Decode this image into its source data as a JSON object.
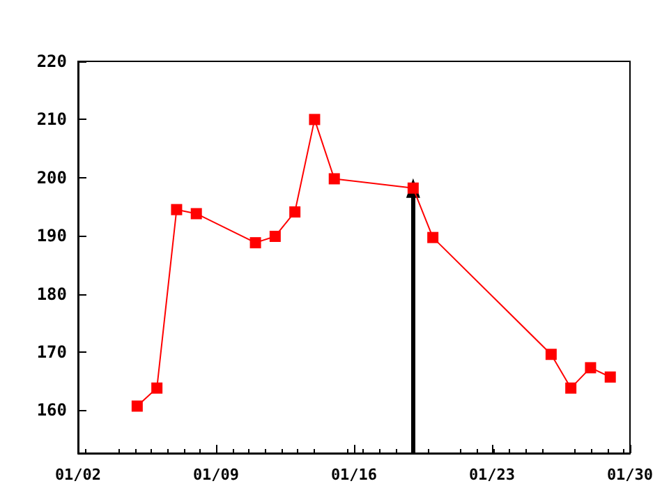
{
  "chart_data": {
    "type": "line",
    "x": [
      "--01-05",
      "--01-06",
      "--01-07",
      "--01-08",
      "--01-11",
      "--01-12",
      "--01-13",
      "--01-14",
      "--01-15",
      "--01-19",
      "--01-20",
      "--01-26",
      "--01-27",
      "--01-28",
      "--01-29"
    ],
    "series": [
      {
        "color": "#ff0000",
        "values": [
          160.7,
          163.8,
          194.5,
          193.8,
          188.8,
          189.9,
          194.1,
          210,
          199.8,
          198.2,
          189.7,
          169.6,
          163.8,
          167.3,
          165.7
        ]
      }
    ],
    "xlim": [
      "--01-02",
      "--01-30"
    ],
    "xticks": [
      {
        "value": "--01-02",
        "label": "01/02"
      },
      {
        "value": "--01-09",
        "label": "01/09"
      },
      {
        "value": "--01-16",
        "label": "01/16"
      },
      {
        "value": "--01-23",
        "label": "01/23"
      },
      {
        "value": "--01-30",
        "label": "01/30"
      }
    ],
    "ylim": [
      152.6,
      220
    ],
    "yticks": [
      160,
      170,
      180,
      190,
      200,
      210,
      220
    ],
    "ref_lines": [
      {
        "axis": "x",
        "value": "--01-19",
        "color": "#000000"
      }
    ],
    "grid": false,
    "marker": "square",
    "line_style": "solid"
  }
}
